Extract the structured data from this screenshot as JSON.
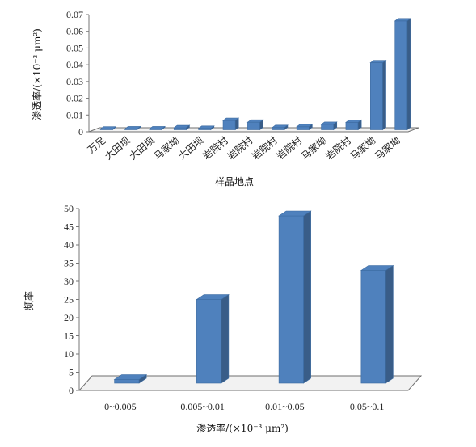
{
  "chart_data": [
    {
      "type": "bar",
      "title": "",
      "xlabel": "样品地点",
      "ylabel": "渗透率/(×10⁻³ μm²)",
      "ylim": [
        0,
        0.07
      ],
      "yticks": [
        "0",
        "0.01",
        "0.02",
        "0.03",
        "0.04",
        "0.05",
        "0.06",
        "0.07"
      ],
      "categories": [
        "万足",
        "大田坝",
        "大田坝",
        "马家坳",
        "大田坝",
        "岩院村",
        "岩院村",
        "岩院村",
        "岩院村",
        "马家坳",
        "岩院村",
        "马家坳",
        "马家坳"
      ],
      "values": [
        0.0004,
        0.0005,
        0.0005,
        0.0012,
        0.0008,
        0.0055,
        0.0045,
        0.0013,
        0.0018,
        0.0032,
        0.0044,
        0.04,
        0.065
      ],
      "color": "#4f81bd",
      "grid": false
    },
    {
      "type": "bar",
      "title": "",
      "xlabel": "渗透率/(×10⁻³ μm²)",
      "ylabel": "频率",
      "ylim": [
        0,
        50
      ],
      "yticks": [
        "0",
        "5",
        "10",
        "15",
        "20",
        "25",
        "30",
        "35",
        "40",
        "45",
        "50"
      ],
      "categories": [
        "0~0.005",
        "0.005~0.01",
        "0.01~0.05",
        "0.05~0.1"
      ],
      "values": [
        1,
        23,
        46,
        31
      ],
      "color": "#4f81bd",
      "grid": false
    }
  ]
}
